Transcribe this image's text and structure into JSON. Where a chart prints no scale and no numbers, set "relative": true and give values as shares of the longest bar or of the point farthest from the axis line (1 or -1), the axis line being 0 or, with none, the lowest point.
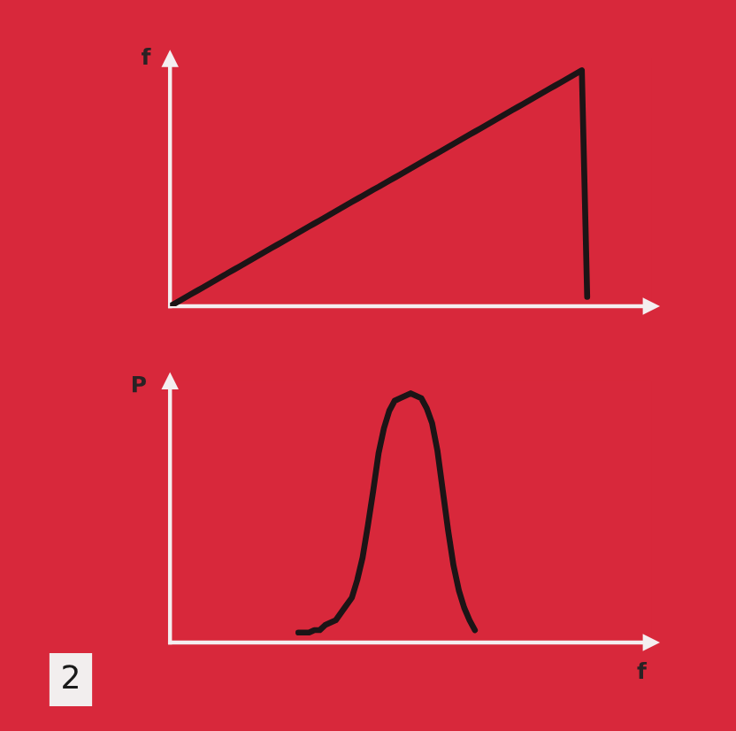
{
  "chart_data": [
    {
      "type": "line",
      "relative": true,
      "ylabel": "f",
      "tick_labels": false,
      "line_style": "solid",
      "categories": [
        null,
        null,
        null,
        null,
        null,
        null,
        null,
        null,
        null,
        null,
        null,
        null,
        null,
        null,
        null,
        null,
        null,
        null,
        null,
        null,
        null,
        null,
        null,
        null,
        null,
        null,
        null,
        null,
        null,
        null,
        null,
        null,
        null,
        null,
        null,
        null,
        null,
        null,
        null,
        null,
        null,
        null,
        null,
        null,
        null,
        null,
        null,
        null,
        null,
        null,
        null,
        null,
        null,
        null,
        null,
        null,
        null,
        null,
        null,
        null,
        null,
        null,
        null,
        null,
        null,
        null,
        null,
        null,
        null,
        null,
        null,
        null,
        null,
        null,
        null,
        null,
        null,
        null,
        null,
        null,
        null,
        null,
        null,
        null,
        null,
        null,
        null,
        null,
        null,
        null,
        null
      ],
      "series": [
        {
          "color": "#1c1416",
          "values": [
            0,
            0.013,
            0.026,
            0.039,
            0.052,
            0.065,
            0.078,
            0.091,
            0.104,
            0.117,
            0.13,
            0.143,
            0.156,
            0.169,
            0.182,
            0.195,
            0.208,
            0.221,
            0.234,
            0.247,
            0.26,
            0.273,
            0.286,
            0.299,
            0.312,
            0.325,
            0.338,
            0.351,
            0.364,
            0.377,
            0.39,
            0.403,
            0.416,
            0.429,
            0.442,
            0.455,
            0.468,
            0.481,
            0.494,
            0.506,
            0.519,
            0.532,
            0.545,
            0.558,
            0.571,
            0.584,
            0.597,
            0.61,
            0.623,
            0.636,
            0.649,
            0.662,
            0.675,
            0.688,
            0.701,
            0.714,
            0.727,
            0.74,
            0.753,
            0.766,
            0.779,
            0.792,
            0.805,
            0.818,
            0.831,
            0.844,
            0.857,
            0.87,
            0.883,
            0.896,
            0.909,
            0.922,
            0.935,
            0.948,
            0.961,
            0.974,
            0.987,
            1,
            0.04,
            null,
            null,
            null,
            null,
            null,
            null,
            null,
            null,
            null,
            null,
            null,
            null
          ]
        }
      ]
    },
    {
      "type": "line",
      "relative": true,
      "ylabel": "P",
      "xlabel": "f",
      "tick_labels": false,
      "line_style": "solid",
      "categories": [
        null,
        null,
        null,
        null,
        null,
        null,
        null,
        null,
        null,
        null,
        null,
        null,
        null,
        null,
        null,
        null,
        null,
        null,
        null,
        null,
        null,
        null,
        null,
        null,
        null,
        null,
        null,
        null,
        null,
        null,
        null,
        null,
        null,
        null,
        null,
        null,
        null,
        null,
        null,
        null,
        null,
        null,
        null,
        null,
        null,
        null,
        null,
        null,
        null,
        null,
        null,
        null,
        null,
        null,
        null,
        null,
        null,
        null,
        null,
        null,
        null,
        null,
        null,
        null,
        null,
        null,
        null,
        null,
        null,
        null,
        null,
        null,
        null,
        null,
        null,
        null,
        null,
        null,
        null,
        null,
        null,
        null,
        null,
        null,
        null,
        null,
        null,
        null,
        null,
        null,
        null
      ],
      "series": [
        {
          "color": "#1c1416",
          "values": [
            null,
            null,
            null,
            null,
            null,
            null,
            null,
            null,
            null,
            null,
            null,
            null,
            null,
            null,
            null,
            null,
            null,
            null,
            null,
            null,
            null,
            null,
            null,
            null,
            0.04,
            0.04,
            0.04,
            0.05,
            0.05,
            0.07,
            0.08,
            0.09,
            0.12,
            0.15,
            0.18,
            0.25,
            0.34,
            0.47,
            0.61,
            0.76,
            0.86,
            0.93,
            0.97,
            0.98,
            0.99,
            1,
            0.99,
            0.98,
            0.94,
            0.88,
            0.77,
            0.61,
            0.45,
            0.31,
            0.21,
            0.14,
            0.09,
            0.05,
            null,
            null,
            null,
            null,
            null,
            null,
            null,
            null,
            null,
            null,
            null,
            null,
            null,
            null,
            null,
            null,
            null,
            null,
            null,
            null,
            null,
            null,
            null,
            null,
            null,
            null,
            null,
            null,
            null,
            null,
            null,
            null,
            null
          ]
        }
      ],
      "annotations": [
        "2"
      ]
    }
  ]
}
